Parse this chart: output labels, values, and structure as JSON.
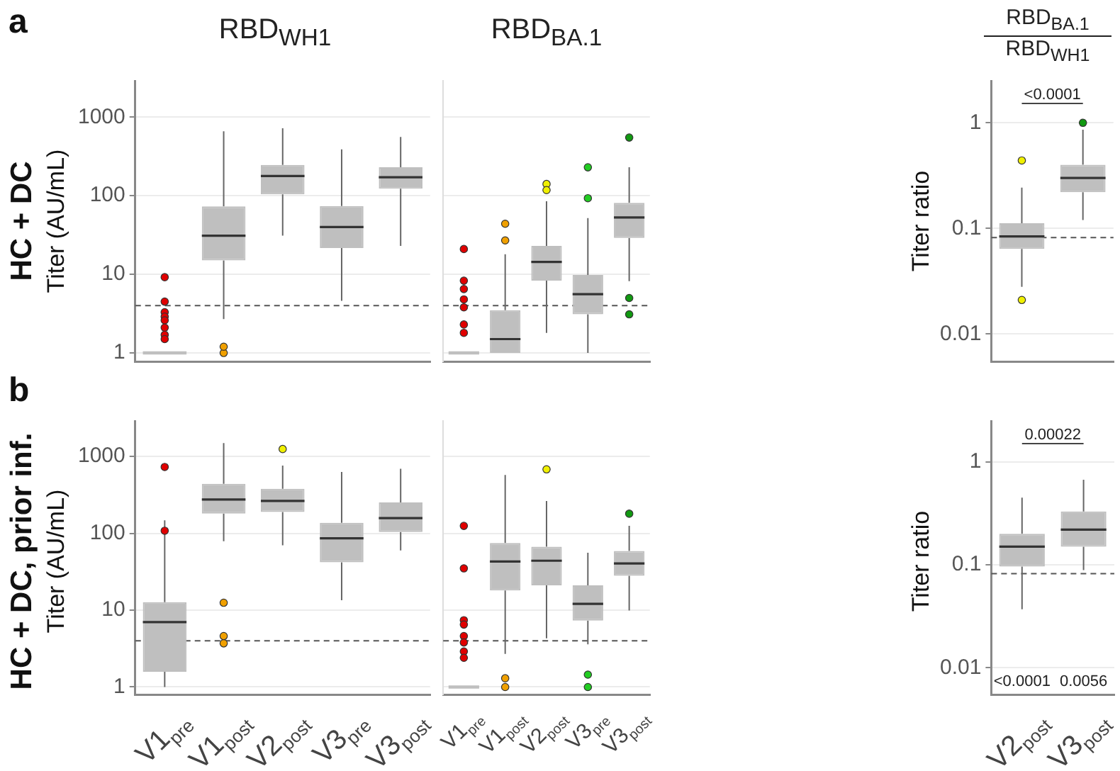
{
  "chart_data": [
    {
      "type": "box",
      "title": "RBD$_{WH1}$",
      "ylabel": "Titer (AU/mL)",
      "annotations": [
        "a",
        "HC + DC"
      ],
      "categories": [
        "V1$_{pre}$",
        "V1$_{post}$",
        "V2$_{post}$",
        "V3$_{pre}$",
        "V3$_{post}$"
      ],
      "log": "y",
      "ylim": [
        0.78,
        2900
      ],
      "yticks": [
        1,
        10,
        100,
        1000
      ],
      "grid": "y",
      "tick_labels": "y",
      "ref_lines": [
        {
          "axis": "y",
          "value": 4,
          "line_style": "dashed",
          "color": "#555555"
        }
      ],
      "series": [
        {
          "type": "box",
          "color": "#bfbfbf",
          "boxes": [
            {
              "low": 1,
              "q1": 1,
              "median": 1,
              "q3": 1,
              "high": 1
            },
            {
              "low": 2.7,
              "q1": 15,
              "median": 31,
              "q3": 73,
              "high": 660
            },
            {
              "low": 31,
              "q1": 104,
              "median": 178,
              "q3": 246,
              "high": 720
            },
            {
              "low": 4.6,
              "q1": 21.6,
              "median": 40,
              "q3": 74,
              "high": 390
            },
            {
              "low": 23,
              "q1": 123,
              "median": 172,
              "q3": 230,
              "high": 560
            }
          ]
        },
        {
          "type": "scatter",
          "x": [
            "V1$_{pre}$",
            "V1$_{pre}$",
            "V1$_{pre}$",
            "V1$_{pre}$",
            "V1$_{pre}$",
            "V1$_{pre}$",
            "V1$_{pre}$",
            "V1$_{pre}$",
            "V1$_{post}$",
            "V1$_{post}$"
          ],
          "values": [
            9.2,
            4.5,
            3.3,
            2.9,
            2.6,
            2.1,
            1.7,
            1.5,
            1,
            1.2
          ],
          "colors": [
            "#e00000",
            "#e00000",
            "#e00000",
            "#e00000",
            "#e00000",
            "#e00000",
            "#e00000",
            "#e00000",
            "#f0a000",
            "#f0a000"
          ]
        }
      ]
    },
    {
      "type": "box",
      "title": "RBD$_{BA.1}$",
      "categories": [
        "V1$_{pre}$",
        "V1$_{post}$",
        "V2$_{post}$",
        "V3$_{pre}$",
        "V3$_{post}$"
      ],
      "log": "y",
      "ylim": [
        0.78,
        2900
      ],
      "yticks": [
        1,
        10,
        100,
        1000
      ],
      "grid": "y",
      "tick_labels": false,
      "ref_lines": [
        {
          "axis": "y",
          "value": 4,
          "line_style": "dashed",
          "color": "#555555"
        }
      ],
      "series": [
        {
          "type": "box",
          "color": "#bfbfbf",
          "boxes": [
            {
              "low": 1,
              "q1": 1,
              "median": 1,
              "q3": 1,
              "high": 1
            },
            {
              "low": 1,
              "q1": 1,
              "median": 1.5,
              "q3": 3.5,
              "high": 18
            },
            {
              "low": 1.8,
              "q1": 8.3,
              "median": 14.4,
              "q3": 23,
              "high": 85
            },
            {
              "low": 1,
              "q1": 3.1,
              "median": 5.6,
              "q3": 9.8,
              "high": 52
            },
            {
              "low": 8.2,
              "q1": 29,
              "median": 53,
              "q3": 81,
              "high": 230
            }
          ]
        },
        {
          "type": "scatter",
          "x": [
            "V1$_{pre}$",
            "V1$_{pre}$",
            "V1$_{pre}$",
            "V1$_{pre}$",
            "V1$_{pre}$",
            "V1$_{pre}$",
            "V1$_{pre}$",
            "V1$_{pre}$",
            "V1$_{post}$",
            "V1$_{post}$",
            "V2$_{post}$",
            "V2$_{post}$",
            "V3$_{pre}$",
            "V3$_{pre}$",
            "V3$_{post}$",
            "V3$_{post}$",
            "V3$_{post}$"
          ],
          "values": [
            21,
            8.3,
            null,
            6.5,
            4.8,
            3.8,
            2.3,
            1.8,
            44,
            27,
            141,
            118,
            230,
            93,
            550,
            5,
            3.1
          ],
          "colors": [
            "#e00000",
            "#e00000",
            "#e00000",
            "#e00000",
            "#e00000",
            "#e00000",
            "#e00000",
            "#e00000",
            "#f0a000",
            "#f0a000",
            "#f0f000",
            "#f0f000",
            "#22cc22",
            "#22cc22",
            "#119911",
            "#119911",
            "#119911"
          ]
        }
      ]
    },
    {
      "type": "box",
      "title": "RBD$_{BA.1}$",
      "subtitle": "RBD$_{WH1}$",
      "ylabel": "Titer ratio",
      "annotations": [
        "<0.0001"
      ],
      "categories": [
        "V2$_{post}$",
        "V3$_{post}$"
      ],
      "log": "y",
      "ylim": [
        0.0055,
        2.5
      ],
      "yticks": [
        0.01,
        0.1,
        1
      ],
      "grid": "y",
      "tick_labels": "y",
      "ref_lines": [
        {
          "axis": "y",
          "value": 0.082,
          "line_style": "dashed",
          "color": "#555555"
        }
      ],
      "series": [
        {
          "type": "box",
          "color": "#bfbfbf",
          "boxes": [
            {
              "low": 0.028,
              "q1": 0.064,
              "median": 0.084,
              "q3": 0.112,
              "high": 0.243
            },
            {
              "low": 0.12,
              "q1": 0.22,
              "median": 0.3,
              "q3": 0.4,
              "high": 0.86
            }
          ]
        },
        {
          "type": "scatter",
          "x": [
            "V2$_{post}$",
            "V2$_{post}$",
            "V3$_{post}$"
          ],
          "values": [
            0.44,
            0.021,
            1
          ],
          "colors": [
            "#f0f000",
            "#f0f000",
            "#119911"
          ]
        }
      ]
    },
    {
      "type": "box",
      "ylabel": "Titer (AU/mL)",
      "annotations": [
        "b",
        "HC + DC, prior inf."
      ],
      "categories": [
        "V1$_{pre}$",
        "V1$_{post}$",
        "V2$_{post}$",
        "V3$_{pre}$",
        "V3$_{post}$"
      ],
      "log": "y",
      "ylim": [
        0.8,
        2900
      ],
      "yticks": [
        1,
        10,
        100,
        1000
      ],
      "grid": "y",
      "ref_lines": [
        {
          "axis": "y",
          "value": 4,
          "line_style": "dashed",
          "color": "#555555"
        }
      ],
      "series": [
        {
          "type": "box",
          "color": "#bfbfbf",
          "boxes": [
            {
              "low": 1,
              "q1": 1.58,
              "median": 7,
              "q3": 12.7,
              "high": 148
            },
            {
              "low": 79,
              "q1": 181,
              "median": 276,
              "q3": 440,
              "high": 1490
            },
            {
              "low": 70,
              "q1": 189,
              "median": 264,
              "q3": 380,
              "high": 760
            },
            {
              "low": 13.5,
              "q1": 42,
              "median": 86,
              "q3": 137,
              "high": 630
            },
            {
              "low": 60,
              "q1": 104,
              "median": 158,
              "q3": 252,
              "high": 690
            }
          ]
        },
        {
          "type": "scatter",
          "x": [
            "V1$_{pre}$",
            "V1$_{pre}$",
            "V1$_{post}$",
            "V1$_{post}$",
            "V1$_{post}$",
            "V2$_{post}$",
            "V2$_{post}$"
          ],
          "values": [
            730,
            108,
            12.5,
            4.6,
            3.7,
            null,
            1250
          ],
          "colors": [
            "#e00000",
            "#e00000",
            "#f0a000",
            "#f0a000",
            "#f0a000",
            "#f0f000",
            "#f0f000"
          ]
        }
      ]
    },
    {
      "type": "box",
      "categories": [
        "V1$_{pre}$",
        "V1$_{post}$",
        "V2$_{post}$",
        "V3$_{pre}$",
        "V3$_{post}$"
      ],
      "log": "y",
      "ylim": [
        0.8,
        2900
      ],
      "yticks": [
        1,
        10,
        100,
        1000
      ],
      "grid": "y",
      "tick_labels": "x",
      "ref_lines": [
        {
          "axis": "y",
          "value": 4,
          "line_style": "dashed",
          "color": "#555555"
        }
      ],
      "series": [
        {
          "type": "box",
          "color": "#bfbfbf",
          "boxes": [
            {
              "low": 1,
              "q1": 1,
              "median": 1,
              "q3": 1,
              "high": 1
            },
            {
              "low": 2.7,
              "q1": 18,
              "median": 43,
              "q3": 75,
              "high": 575
            },
            {
              "low": 4.3,
              "q1": 21,
              "median": 44,
              "q3": 67,
              "high": 263
            },
            {
              "low": 3.6,
              "q1": 7.3,
              "median": 12.1,
              "q3": 21,
              "high": 56
            },
            {
              "low": 9.9,
              "q1": 28,
              "median": 40.5,
              "q3": 59,
              "high": 125
            }
          ]
        },
        {
          "type": "scatter",
          "x": [
            "V1$_{pre}$",
            "V1$_{pre}$",
            "V1$_{pre}$",
            "V1$_{pre}$",
            "V1$_{pre}$",
            "V1$_{pre}$",
            "V1$_{pre}$",
            "V1$_{pre}$",
            "V1$_{post}$",
            "V1$_{post}$",
            "V2$_{post}$",
            "V3$_{pre}$",
            "V3$_{pre}$",
            "V3$_{post}$"
          ],
          "values": [
            125,
            35,
            7.4,
            6.5,
            4.6,
            3.8,
            2.9,
            2.4,
            1,
            1.3,
            680,
            1.45,
            1,
            180
          ],
          "colors": [
            "#e00000",
            "#e00000",
            "#e00000",
            "#e00000",
            "#e00000",
            "#e00000",
            "#e00000",
            "#e00000",
            "#f0a000",
            "#f0a000",
            "#f0f000",
            "#22cc22",
            "#22cc22",
            "#119911"
          ]
        }
      ]
    },
    {
      "type": "box",
      "ylabel": "Titer ratio",
      "annotations": [
        "0.00022",
        "<0.0001",
        "0.0056"
      ],
      "categories": [
        "V2$_{post}$",
        "V3$_{post}$"
      ],
      "log": "y",
      "ylim": [
        0.0055,
        2.5
      ],
      "yticks": [
        0.01,
        0.1,
        1
      ],
      "grid": "y",
      "ref_lines": [
        {
          "axis": "y",
          "value": 0.082,
          "line_style": "dashed",
          "color": "#555555"
        }
      ],
      "series": [
        {
          "type": "box",
          "color": "#bfbfbf",
          "boxes": [
            {
              "low": 0.037,
              "q1": 0.096,
              "median": 0.15,
              "q3": 0.2,
              "high": 0.45
            },
            {
              "low": 0.089,
              "q1": 0.15,
              "median": 0.22,
              "q3": 0.33,
              "high": 0.67
            }
          ]
        }
      ]
    }
  ]
}
